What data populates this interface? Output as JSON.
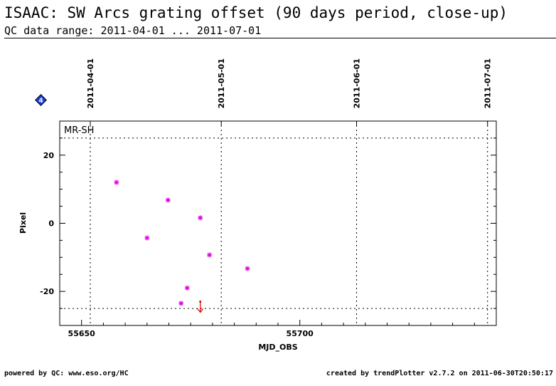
{
  "header": {
    "title": "ISAAC: SW Arcs grating offset (90 days period, close-up)",
    "subtitle": "QC data range: 2011-04-01 ... 2011-07-01"
  },
  "footer": {
    "left": "powered by QC: www.eso.org/HC",
    "right": "created by trendPlotter v2.7.2 on 2011-06-30T20:50:17"
  },
  "badge": {
    "label": "4",
    "color": "#1a3fd6"
  },
  "chart_data": {
    "type": "scatter",
    "panel_label": "MR-SH",
    "xlabel": "MJD_OBS",
    "ylabel": "Pixel",
    "xlim": [
      55645,
      55745
    ],
    "ylim": [
      -30,
      30
    ],
    "x_ticks": [
      55650,
      55700
    ],
    "y_ticks": [
      -20,
      0,
      20
    ],
    "date_ticks": [
      {
        "mjd": 55652,
        "label": "2011-04-01"
      },
      {
        "mjd": 55682,
        "label": "2011-05-01"
      },
      {
        "mjd": 55713,
        "label": "2011-06-01"
      },
      {
        "mjd": 55743,
        "label": "2011-07-01"
      }
    ],
    "thresholds": [
      25,
      -25
    ],
    "point_color": "#e000e0",
    "outlier_color": "#e00000",
    "points": [
      {
        "x": 55658.0,
        "y": 12.0
      },
      {
        "x": 55665.0,
        "y": -4.3
      },
      {
        "x": 55669.8,
        "y": 6.8
      },
      {
        "x": 55672.8,
        "y": -23.5
      },
      {
        "x": 55674.2,
        "y": -19.0
      },
      {
        "x": 55677.2,
        "y": 1.6
      },
      {
        "x": 55679.3,
        "y": -9.3
      },
      {
        "x": 55688.0,
        "y": -13.3
      }
    ],
    "outliers": [
      {
        "x": 55677.2,
        "y": -23,
        "direction": "down"
      }
    ]
  }
}
